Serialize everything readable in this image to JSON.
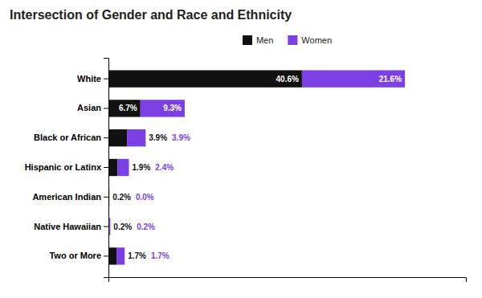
{
  "chart_data": {
    "type": "bar",
    "orientation": "horizontal",
    "stacked": true,
    "title": "Intersection of Gender and Race and Ethnicity",
    "categories": [
      "White",
      "Asian",
      "Black or African",
      "Hispanic or Latinx",
      "American Indian",
      "Native Hawaiian",
      "Two or More"
    ],
    "series": [
      {
        "name": "Men",
        "color": "#111111",
        "values": [
          40.6,
          6.7,
          3.9,
          1.9,
          0.2,
          0.2,
          1.7
        ],
        "value_labels": [
          "40.6%",
          "6.7%",
          "3.9%",
          "1.9%",
          "0.2%",
          "0.2%",
          "1.7%"
        ]
      },
      {
        "name": "Women",
        "color": "#7B3FE4",
        "values": [
          21.6,
          9.3,
          3.9,
          2.4,
          0.0,
          0.2,
          1.7
        ],
        "value_labels": [
          "21.6%",
          "9.3%",
          "3.9%",
          "2.4%",
          "0.0%",
          "0.2%",
          "1.7%"
        ]
      }
    ],
    "xlim": [
      0,
      75
    ],
    "xticks": [],
    "tick_labels": "y",
    "grid": false,
    "data_labels": true,
    "legend": "top"
  }
}
